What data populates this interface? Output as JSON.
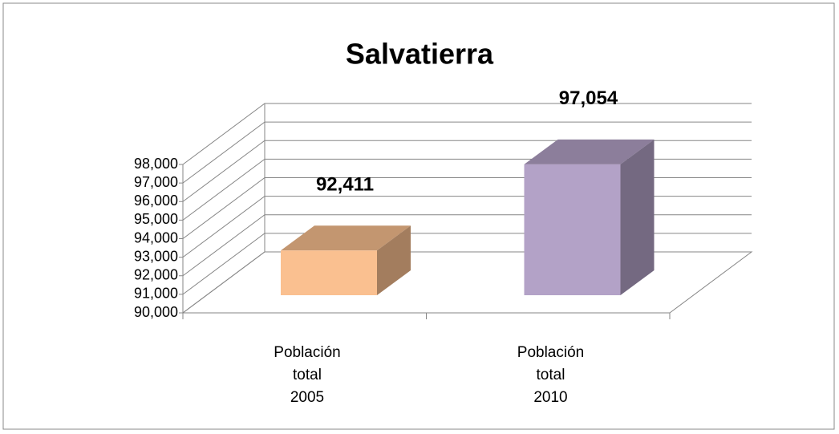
{
  "chart_data": {
    "type": "bar3d",
    "title": "Salvatierra",
    "categories": [
      "Población total 2005",
      "Población total 2010"
    ],
    "values": [
      92411,
      97054
    ],
    "value_labels": [
      "92,411",
      "97,054"
    ],
    "colors": [
      "#fac090",
      "#b3a2c7"
    ],
    "ylim": [
      90000,
      98000
    ],
    "yticks": [
      {
        "value": 90000,
        "label": "90,000"
      },
      {
        "value": 91000,
        "label": "91,000"
      },
      {
        "value": 92000,
        "label": "92,000"
      },
      {
        "value": 93000,
        "label": "93,000"
      },
      {
        "value": 94000,
        "label": "94,000"
      },
      {
        "value": 95000,
        "label": "95,000"
      },
      {
        "value": 96000,
        "label": "96,000"
      },
      {
        "value": 97000,
        "label": "97,000"
      },
      {
        "value": 98000,
        "label": "98,000"
      }
    ],
    "grid": true
  }
}
